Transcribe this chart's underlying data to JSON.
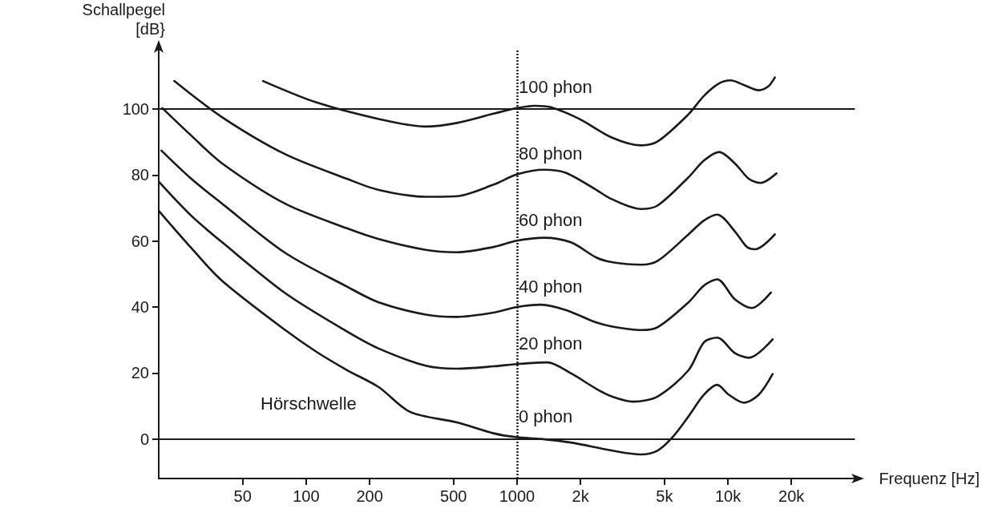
{
  "chart_data": {
    "type": "line",
    "xlabel": "Frequenz [Hz]",
    "ylabel": "Schallpegel\n[dB}",
    "log": "x",
    "grid": false,
    "marker": "none",
    "xlim": [
      20,
      40000
    ],
    "ylim": [
      -12,
      118
    ],
    "xticks": [
      50,
      100,
      200,
      500,
      1000,
      {
        "value": 2000,
        "label": "2k"
      },
      {
        "value": 5000,
        "label": "5k"
      },
      {
        "value": 10000,
        "label": "10k"
      },
      {
        "value": 20000,
        "label": "20k"
      }
    ],
    "yticks": [
      0,
      20,
      40,
      60,
      80,
      100
    ],
    "series": [
      {
        "name": "100 phon",
        "color": "#1a1a1a",
        "x": [
          62.5,
          112,
          221,
          369,
          519,
          774,
          1000,
          1213,
          1435,
          1975,
          2810,
          3870,
          4650,
          6500,
          7700,
          9100,
          10300,
          11900,
          14000,
          15500,
          16700
        ],
        "values": [
          108.5,
          102,
          97,
          94.7,
          95.8,
          98.6,
          100.3,
          101,
          100.6,
          97,
          91.4,
          89,
          90.2,
          98.4,
          104,
          107.8,
          108.7,
          107.3,
          105.7,
          106.8,
          109.6
        ]
      },
      {
        "name": "80 phon",
        "color": "#1a1a1a",
        "x": [
          23.7,
          40,
          79.6,
          157,
          221,
          369,
          519,
          774,
          1000,
          1340,
          1700,
          2376,
          2810,
          3870,
          4650,
          6500,
          7700,
          9100,
          10800,
          12600,
          14300,
          17000
        ],
        "values": [
          108.5,
          97.5,
          86.3,
          78.8,
          75.5,
          73.4,
          73.6,
          77.1,
          80.2,
          81.6,
          80.7,
          75.5,
          72.7,
          69.7,
          70.8,
          79.3,
          84.4,
          87,
          83.5,
          78.8,
          77.6,
          80.5
        ]
      },
      {
        "name": "60 phon",
        "color": "#1a1a1a",
        "x": [
          20.8,
          28.6,
          40,
          79.6,
          157,
          221,
          369,
          519,
          774,
          1000,
          1340,
          1800,
          2376,
          2810,
          3870,
          4650,
          6500,
          7700,
          8900,
          10800,
          12300,
          13500,
          16700
        ],
        "values": [
          100.3,
          91.9,
          83.5,
          71.3,
          63.8,
          60.6,
          57.3,
          56.6,
          58.2,
          60.1,
          61,
          59.6,
          55,
          53.6,
          52.8,
          54,
          62,
          66.2,
          68,
          62.9,
          58.2,
          57.5,
          62
        ]
      },
      {
        "name": "40 phon",
        "color": "#1a1a1a",
        "x": [
          20.6,
          28.6,
          40,
          79.6,
          157,
          221,
          369,
          519,
          774,
          1000,
          1300,
          1700,
          2376,
          2810,
          3870,
          4650,
          6500,
          7700,
          8900,
          10800,
          13000,
          16000
        ],
        "values": [
          87.4,
          78.8,
          71.3,
          56.4,
          46.1,
          41.4,
          37.7,
          37,
          38.3,
          40,
          40.7,
          39.1,
          35.3,
          34.1,
          33,
          33.9,
          41.4,
          46.5,
          48.4,
          42.3,
          39.7,
          44.4
        ]
      },
      {
        "name": "20 phon",
        "color": "#1a1a1a",
        "x": [
          20.1,
          28.6,
          40,
          79.6,
          157,
          221,
          369,
          519,
          774,
          1000,
          1390,
          1800,
          2376,
          2810,
          3550,
          4650,
          6500,
          7700,
          8900,
          10800,
          12600,
          16300
        ],
        "values": [
          77.9,
          67.6,
          59.6,
          44.2,
          32.5,
          27.4,
          22.2,
          21.3,
          22,
          22.7,
          23.2,
          19.9,
          15.2,
          12.9,
          11.3,
          12.9,
          20.8,
          29.3,
          30.7,
          26,
          24.6,
          30.2
        ]
      },
      {
        "name": "0 phon",
        "color": "#1a1a1a",
        "x": [
          20.1,
          28.6,
          40,
          79.6,
          112,
          157,
          221,
          311,
          519,
          774,
          1000,
          1300,
          1800,
          2810,
          3870,
          4650,
          5500,
          6500,
          7700,
          8900,
          10100,
          11900,
          14000,
          16300
        ],
        "values": [
          69,
          57.8,
          47.9,
          33,
          26.4,
          20.8,
          15.7,
          8.2,
          5,
          1.7,
          0.5,
          0,
          -1.1,
          -3.5,
          -4.7,
          -3.5,
          0.7,
          6.8,
          13.4,
          16.4,
          13.4,
          11,
          13.4,
          19.7
        ]
      }
    ],
    "ref_lines": [
      {
        "axis": "y",
        "value": 0,
        "color": "#1a1a1a",
        "line_style": "solid"
      },
      {
        "axis": "y",
        "value": 100,
        "color": "#1a1a1a",
        "line_style": "solid"
      },
      {
        "axis": "x",
        "value": 1000,
        "color": "#1a1a1a",
        "line_style": "dotted"
      }
    ],
    "annotations": [
      "Hörschwelle"
    ]
  }
}
